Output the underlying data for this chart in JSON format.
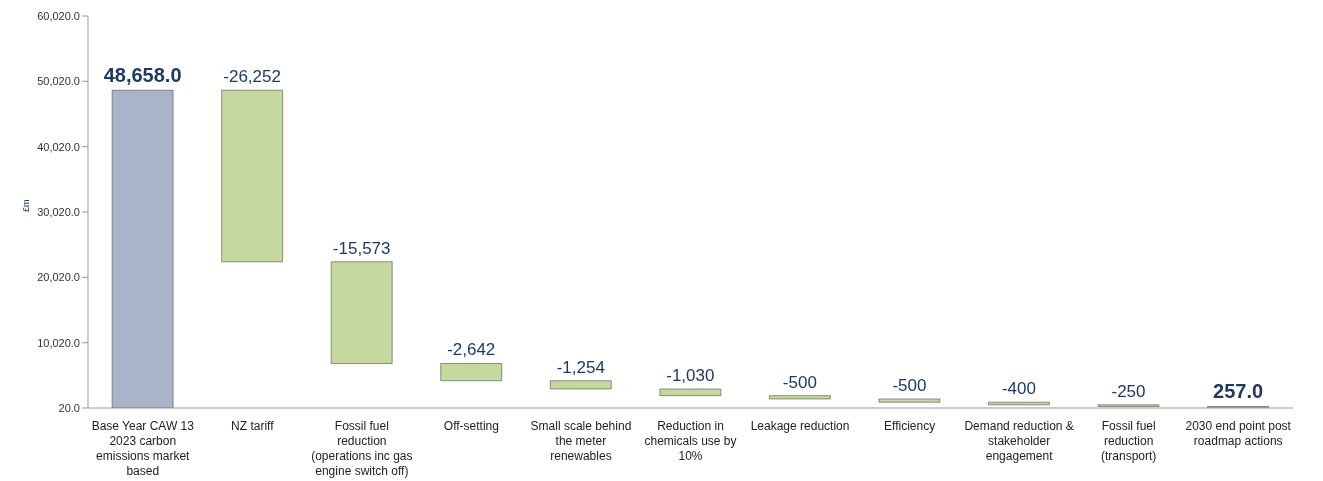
{
  "chart_data": {
    "type": "bar",
    "ylabel": "£m",
    "categories": [
      "Base Year CAW 13 2023 carbon emissions market based",
      "NZ tariff",
      "Fossil fuel reduction (operations inc gas engine switch off)",
      "Off-setting",
      "Small scale behind the meter renewables",
      "Reduction in chemicals use by 10%",
      "Leakage reduction",
      "Efficiency",
      "Demand reduction & stakeholder engagement",
      "Fossil fuel reduction (transport)",
      "2030 end point post roadmap actions"
    ],
    "values": [
      48658,
      -26252,
      -15573,
      -2642,
      -1254,
      -1030,
      -500,
      -500,
      -400,
      -250,
      257
    ],
    "base": [
      null,
      48658,
      22406,
      6833,
      4191,
      2937,
      1907,
      1407,
      907,
      507,
      null
    ],
    "colors": [
      "#aab4c8",
      "#c5d89e",
      "#c5d89e",
      "#c5d89e",
      "#c5d89e",
      "#c5d89e",
      "#c5d89e",
      "#c5d89e",
      "#c5d89e",
      "#c5d89e",
      "#aab4c8"
    ],
    "value_labels": [
      "48,658.0",
      "-26,252",
      "-15,573",
      "-2,642",
      "-1,254",
      "-1,030",
      "-500",
      "-500",
      "-400",
      "-250",
      "257.0"
    ],
    "ylim": [
      20,
      60020
    ],
    "yticks": [
      {
        "value": 20,
        "label": "20.0"
      },
      {
        "value": 10020,
        "label": "10,020.0"
      },
      {
        "value": 20020,
        "label": "20,020.0"
      },
      {
        "value": 30020,
        "label": "30,020.0"
      },
      {
        "value": 40020,
        "label": "40,020.0"
      },
      {
        "value": 50020,
        "label": "50,020.0"
      },
      {
        "value": 60020,
        "label": "60,020.0"
      }
    ],
    "grid": false,
    "legend": false
  }
}
